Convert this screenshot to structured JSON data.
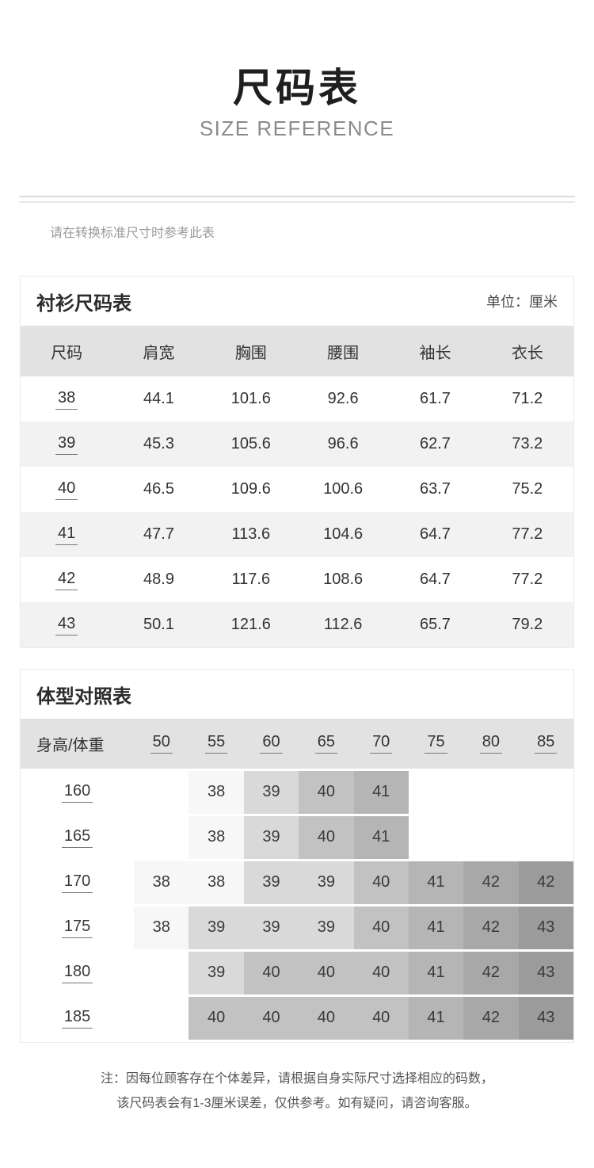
{
  "page": {
    "title": "尺码表",
    "subtitle": "SIZE REFERENCE",
    "intro": "请在转换标准尺寸时参考此表",
    "note_line1": "注：因每位顾客存在个体差异，请根据自身实际尺寸选择相应的码数，",
    "note_line2": "该尺码表会有1-3厘米误差，仅供参考。如有疑问，请咨询客服。"
  },
  "shirt_table": {
    "title": "衬衫尺码表",
    "unit_label": "单位：厘米",
    "headers": [
      "尺码",
      "肩宽",
      "胸围",
      "腰围",
      "袖长",
      "衣长"
    ],
    "rows": [
      {
        "size": "38",
        "values": [
          "44.1",
          "101.6",
          "92.6",
          "61.7",
          "71.2"
        ]
      },
      {
        "size": "39",
        "values": [
          "45.3",
          "105.6",
          "96.6",
          "62.7",
          "73.2"
        ]
      },
      {
        "size": "40",
        "values": [
          "46.5",
          "109.6",
          "100.6",
          "63.7",
          "75.2"
        ]
      },
      {
        "size": "41",
        "values": [
          "47.7",
          "113.6",
          "104.6",
          "64.7",
          "77.2"
        ]
      },
      {
        "size": "42",
        "values": [
          "48.9",
          "117.6",
          "108.6",
          "64.7",
          "77.2"
        ]
      },
      {
        "size": "43",
        "values": [
          "50.1",
          "121.6",
          "112.6",
          "65.7",
          "79.2"
        ]
      }
    ]
  },
  "body_table": {
    "title": "体型对照表",
    "corner_header": "身高/体重",
    "weight_headers": [
      "50",
      "55",
      "60",
      "65",
      "70",
      "75",
      "80",
      "85"
    ],
    "shade_scale": [
      "#ffffff",
      "#f7f7f7",
      "#d9d9d9",
      "#c2c2c2",
      "#b5b5b5",
      "#a8a8a8",
      "#9b9b9b"
    ],
    "rows": [
      {
        "height": "160",
        "cells": [
          {
            "v": "",
            "s": 0
          },
          {
            "v": "38",
            "s": 1
          },
          {
            "v": "39",
            "s": 2
          },
          {
            "v": "40",
            "s": 3
          },
          {
            "v": "41",
            "s": 4
          },
          {
            "v": "",
            "s": 0
          },
          {
            "v": "",
            "s": 0
          },
          {
            "v": "",
            "s": 0
          }
        ]
      },
      {
        "height": "165",
        "cells": [
          {
            "v": "",
            "s": 0
          },
          {
            "v": "38",
            "s": 1
          },
          {
            "v": "39",
            "s": 2
          },
          {
            "v": "40",
            "s": 3
          },
          {
            "v": "41",
            "s": 4
          },
          {
            "v": "",
            "s": 0
          },
          {
            "v": "",
            "s": 0
          },
          {
            "v": "",
            "s": 0
          }
        ]
      },
      {
        "height": "170",
        "cells": [
          {
            "v": "38",
            "s": 1
          },
          {
            "v": "38",
            "s": 1
          },
          {
            "v": "39",
            "s": 2
          },
          {
            "v": "39",
            "s": 2
          },
          {
            "v": "40",
            "s": 3
          },
          {
            "v": "41",
            "s": 4
          },
          {
            "v": "42",
            "s": 5
          },
          {
            "v": "42",
            "s": 6
          }
        ]
      },
      {
        "height": "175",
        "cells": [
          {
            "v": "38",
            "s": 1
          },
          {
            "v": "39",
            "s": 2
          },
          {
            "v": "39",
            "s": 2
          },
          {
            "v": "39",
            "s": 2
          },
          {
            "v": "40",
            "s": 3
          },
          {
            "v": "41",
            "s": 4
          },
          {
            "v": "42",
            "s": 5
          },
          {
            "v": "43",
            "s": 6
          }
        ]
      },
      {
        "height": "180",
        "cells": [
          {
            "v": "",
            "s": 0
          },
          {
            "v": "39",
            "s": 2
          },
          {
            "v": "40",
            "s": 3
          },
          {
            "v": "40",
            "s": 3
          },
          {
            "v": "40",
            "s": 3
          },
          {
            "v": "41",
            "s": 4
          },
          {
            "v": "42",
            "s": 5
          },
          {
            "v": "43",
            "s": 6
          }
        ]
      },
      {
        "height": "185",
        "cells": [
          {
            "v": "",
            "s": 0
          },
          {
            "v": "40",
            "s": 3
          },
          {
            "v": "40",
            "s": 3
          },
          {
            "v": "40",
            "s": 3
          },
          {
            "v": "40",
            "s": 3
          },
          {
            "v": "41",
            "s": 4
          },
          {
            "v": "42",
            "s": 5
          },
          {
            "v": "43",
            "s": 6
          }
        ]
      }
    ]
  },
  "colors": {
    "title_text": "#1f1f1f",
    "subtitle_text": "#8a8a8a",
    "table_header_band": "#e2e2e2",
    "alt_row": "#f2f2f2",
    "body_text": "#333333",
    "note_text": "#555555"
  }
}
